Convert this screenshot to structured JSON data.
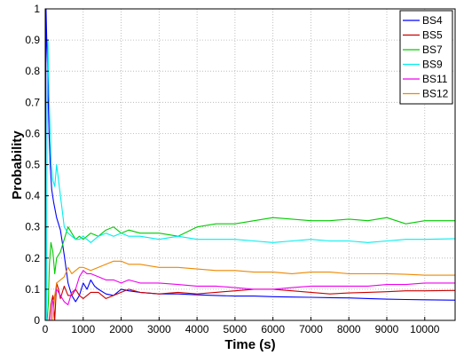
{
  "chart_data": {
    "type": "line",
    "title": "",
    "xlabel": "Time (s)",
    "ylabel": "Probability",
    "xlim": [
      0,
      10800
    ],
    "ylim": [
      0,
      1
    ],
    "xticks": [
      0,
      1000,
      2000,
      3000,
      4000,
      5000,
      6000,
      7000,
      8000,
      9000,
      10000
    ],
    "yticks": [
      0,
      0.1,
      0.2,
      0.3,
      0.4,
      0.5,
      0.6,
      0.7,
      0.8,
      0.9,
      1
    ],
    "xtick_labels": [
      "0",
      "1000",
      "2000",
      "3000",
      "4000",
      "5000",
      "6000",
      "7000",
      "8000",
      "9000",
      "10000"
    ],
    "ytick_labels": [
      "0",
      "0.1",
      "0.2",
      "0.3",
      "0.4",
      "0.5",
      "0.6",
      "0.7",
      "0.8",
      "0.9",
      "1"
    ],
    "grid": true,
    "legend_position": "top-right",
    "series": [
      {
        "name": "BS4",
        "color": "#0000ff",
        "points": [
          [
            0,
            0
          ],
          [
            20,
            1.0
          ],
          [
            40,
            0.9
          ],
          [
            60,
            0.82
          ],
          [
            80,
            0.7
          ],
          [
            100,
            0.6
          ],
          [
            130,
            0.5
          ],
          [
            170,
            0.42
          ],
          [
            220,
            0.38
          ],
          [
            300,
            0.33
          ],
          [
            400,
            0.29
          ],
          [
            500,
            0.21
          ],
          [
            600,
            0.12
          ],
          [
            700,
            0.08
          ],
          [
            800,
            0.06
          ],
          [
            900,
            0.08
          ],
          [
            1000,
            0.12
          ],
          [
            1100,
            0.1
          ],
          [
            1200,
            0.13
          ],
          [
            1300,
            0.11
          ],
          [
            1400,
            0.1
          ],
          [
            1600,
            0.085
          ],
          [
            1800,
            0.08
          ],
          [
            2000,
            0.1
          ],
          [
            2200,
            0.095
          ],
          [
            2500,
            0.09
          ],
          [
            3000,
            0.085
          ],
          [
            3500,
            0.085
          ],
          [
            4000,
            0.082
          ],
          [
            4500,
            0.08
          ],
          [
            5000,
            0.078
          ],
          [
            5500,
            0.078
          ],
          [
            6000,
            0.076
          ],
          [
            6500,
            0.075
          ],
          [
            7000,
            0.074
          ],
          [
            7500,
            0.073
          ],
          [
            8000,
            0.072
          ],
          [
            8500,
            0.07
          ],
          [
            9000,
            0.068
          ],
          [
            9500,
            0.067
          ],
          [
            10000,
            0.066
          ],
          [
            10800,
            0.065
          ]
        ]
      },
      {
        "name": "BS5",
        "color": "#cc0000",
        "points": [
          [
            0,
            0
          ],
          [
            100,
            0.0
          ],
          [
            150,
            0.05
          ],
          [
            200,
            0.08
          ],
          [
            250,
            0.0
          ],
          [
            300,
            0.12
          ],
          [
            350,
            0.1
          ],
          [
            400,
            0.07
          ],
          [
            500,
            0.11
          ],
          [
            600,
            0.08
          ],
          [
            700,
            0.08
          ],
          [
            800,
            0.1
          ],
          [
            900,
            0.08
          ],
          [
            1000,
            0.07
          ],
          [
            1200,
            0.09
          ],
          [
            1400,
            0.09
          ],
          [
            1600,
            0.07
          ],
          [
            1800,
            0.08
          ],
          [
            2000,
            0.09
          ],
          [
            2200,
            0.1
          ],
          [
            2500,
            0.09
          ],
          [
            3000,
            0.085
          ],
          [
            3500,
            0.09
          ],
          [
            4000,
            0.085
          ],
          [
            4500,
            0.09
          ],
          [
            5000,
            0.095
          ],
          [
            5500,
            0.1
          ],
          [
            6000,
            0.1
          ],
          [
            6500,
            0.095
          ],
          [
            7000,
            0.09
          ],
          [
            7500,
            0.085
          ],
          [
            8000,
            0.088
          ],
          [
            8500,
            0.09
          ],
          [
            9000,
            0.092
          ],
          [
            9500,
            0.095
          ],
          [
            10000,
            0.095
          ],
          [
            10800,
            0.096
          ]
        ]
      },
      {
        "name": "BS7",
        "color": "#00cc00",
        "points": [
          [
            0,
            0
          ],
          [
            50,
            0.0
          ],
          [
            80,
            0.05
          ],
          [
            110,
            0.18
          ],
          [
            150,
            0.25
          ],
          [
            200,
            0.22
          ],
          [
            250,
            0.15
          ],
          [
            300,
            0.2
          ],
          [
            400,
            0.22
          ],
          [
            500,
            0.26
          ],
          [
            600,
            0.3
          ],
          [
            700,
            0.28
          ],
          [
            800,
            0.26
          ],
          [
            900,
            0.27
          ],
          [
            1000,
            0.26
          ],
          [
            1200,
            0.28
          ],
          [
            1400,
            0.27
          ],
          [
            1600,
            0.29
          ],
          [
            1800,
            0.3
          ],
          [
            2000,
            0.28
          ],
          [
            2200,
            0.29
          ],
          [
            2500,
            0.28
          ],
          [
            3000,
            0.28
          ],
          [
            3500,
            0.27
          ],
          [
            4000,
            0.3
          ],
          [
            4500,
            0.31
          ],
          [
            5000,
            0.31
          ],
          [
            5500,
            0.32
          ],
          [
            6000,
            0.33
          ],
          [
            6500,
            0.325
          ],
          [
            7000,
            0.32
          ],
          [
            7500,
            0.32
          ],
          [
            8000,
            0.325
          ],
          [
            8500,
            0.32
          ],
          [
            9000,
            0.33
          ],
          [
            9500,
            0.31
          ],
          [
            10000,
            0.32
          ],
          [
            10800,
            0.32
          ]
        ]
      },
      {
        "name": "BS9",
        "color": "#00eeee",
        "points": [
          [
            0,
            0
          ],
          [
            30,
            0.0
          ],
          [
            50,
            0.65
          ],
          [
            70,
            0.9
          ],
          [
            100,
            0.72
          ],
          [
            130,
            0.6
          ],
          [
            160,
            0.5
          ],
          [
            200,
            0.45
          ],
          [
            250,
            0.43
          ],
          [
            300,
            0.5
          ],
          [
            350,
            0.45
          ],
          [
            400,
            0.4
          ],
          [
            450,
            0.35
          ],
          [
            500,
            0.3
          ],
          [
            600,
            0.28
          ],
          [
            700,
            0.27
          ],
          [
            800,
            0.26
          ],
          [
            900,
            0.26
          ],
          [
            1000,
            0.27
          ],
          [
            1200,
            0.25
          ],
          [
            1400,
            0.27
          ],
          [
            1600,
            0.28
          ],
          [
            1800,
            0.27
          ],
          [
            2000,
            0.28
          ],
          [
            2200,
            0.27
          ],
          [
            2500,
            0.27
          ],
          [
            3000,
            0.26
          ],
          [
            3500,
            0.27
          ],
          [
            4000,
            0.26
          ],
          [
            4500,
            0.26
          ],
          [
            5000,
            0.26
          ],
          [
            5500,
            0.255
          ],
          [
            6000,
            0.25
          ],
          [
            6500,
            0.255
          ],
          [
            7000,
            0.26
          ],
          [
            7500,
            0.255
          ],
          [
            8000,
            0.255
          ],
          [
            8500,
            0.25
          ],
          [
            9000,
            0.255
          ],
          [
            9500,
            0.26
          ],
          [
            10000,
            0.26
          ],
          [
            10800,
            0.262
          ]
        ]
      },
      {
        "name": "BS11",
        "color": "#ee00ee",
        "points": [
          [
            0,
            0
          ],
          [
            150,
            0.0
          ],
          [
            200,
            0.06
          ],
          [
            300,
            0.1
          ],
          [
            400,
            0.08
          ],
          [
            500,
            0.06
          ],
          [
            600,
            0.05
          ],
          [
            700,
            0.09
          ],
          [
            800,
            0.1
          ],
          [
            900,
            0.14
          ],
          [
            1000,
            0.16
          ],
          [
            1100,
            0.15
          ],
          [
            1200,
            0.15
          ],
          [
            1400,
            0.14
          ],
          [
            1600,
            0.13
          ],
          [
            1800,
            0.13
          ],
          [
            2000,
            0.12
          ],
          [
            2200,
            0.13
          ],
          [
            2500,
            0.12
          ],
          [
            3000,
            0.12
          ],
          [
            3500,
            0.115
          ],
          [
            4000,
            0.11
          ],
          [
            4500,
            0.11
          ],
          [
            5000,
            0.105
          ],
          [
            5500,
            0.1
          ],
          [
            6000,
            0.1
          ],
          [
            6500,
            0.105
          ],
          [
            7000,
            0.11
          ],
          [
            7500,
            0.11
          ],
          [
            8000,
            0.11
          ],
          [
            8500,
            0.11
          ],
          [
            9000,
            0.115
          ],
          [
            9500,
            0.115
          ],
          [
            10000,
            0.12
          ],
          [
            10800,
            0.12
          ]
        ]
      },
      {
        "name": "BS12",
        "color": "#ee8800",
        "points": [
          [
            0,
            0
          ],
          [
            200,
            0.0
          ],
          [
            250,
            0.08
          ],
          [
            300,
            0.12
          ],
          [
            400,
            0.13
          ],
          [
            500,
            0.14
          ],
          [
            600,
            0.17
          ],
          [
            700,
            0.15
          ],
          [
            800,
            0.16
          ],
          [
            900,
            0.17
          ],
          [
            1000,
            0.17
          ],
          [
            1200,
            0.16
          ],
          [
            1400,
            0.17
          ],
          [
            1600,
            0.18
          ],
          [
            1800,
            0.19
          ],
          [
            2000,
            0.19
          ],
          [
            2200,
            0.18
          ],
          [
            2500,
            0.18
          ],
          [
            3000,
            0.17
          ],
          [
            3500,
            0.17
          ],
          [
            4000,
            0.165
          ],
          [
            4500,
            0.16
          ],
          [
            5000,
            0.16
          ],
          [
            5500,
            0.155
          ],
          [
            6000,
            0.155
          ],
          [
            6500,
            0.15
          ],
          [
            7000,
            0.155
          ],
          [
            7500,
            0.155
          ],
          [
            8000,
            0.15
          ],
          [
            8500,
            0.15
          ],
          [
            9000,
            0.15
          ],
          [
            9500,
            0.148
          ],
          [
            10000,
            0.145
          ],
          [
            10800,
            0.145
          ]
        ]
      }
    ]
  }
}
